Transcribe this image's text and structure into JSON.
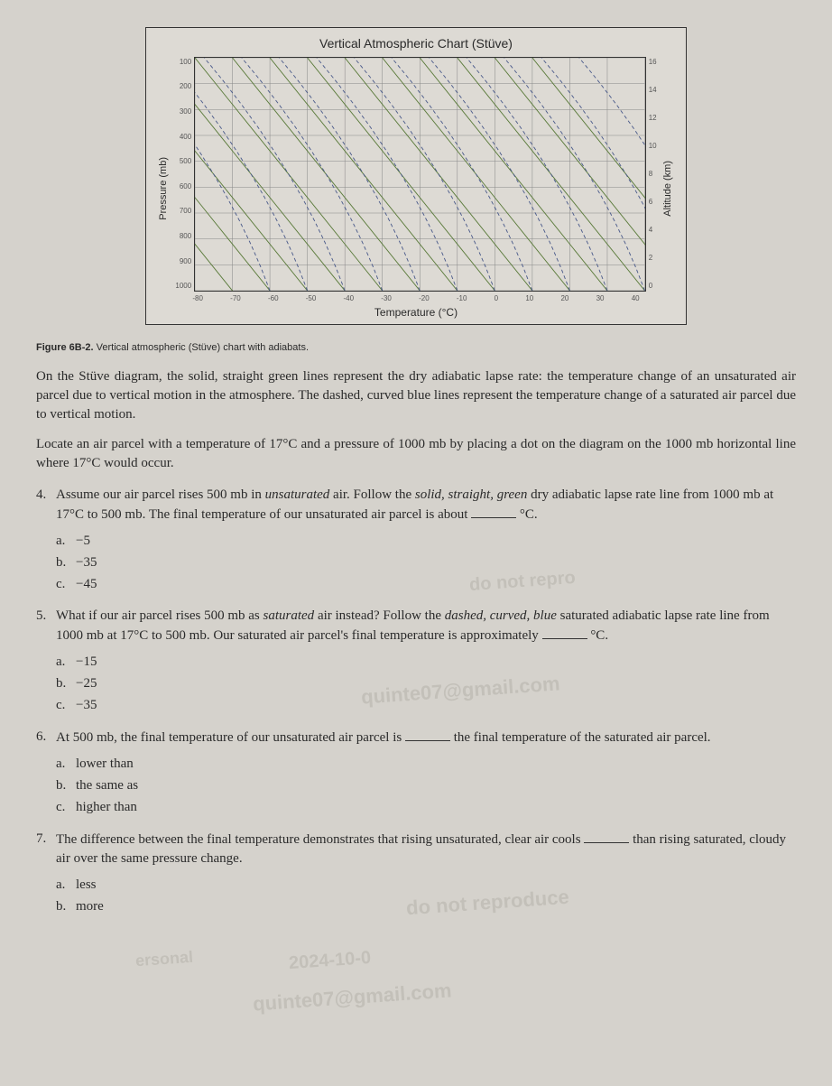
{
  "chart": {
    "title": "Vertical Atmospheric Chart (Stüve)",
    "ylabel_left": "Pressure (mb)",
    "ylabel_right": "Altitude (km)",
    "xlabel": "Temperature (°C)",
    "yticks_left": [
      "100",
      "200",
      "300",
      "400",
      "500",
      "600",
      "700",
      "800",
      "900",
      "1000"
    ],
    "yticks_right": [
      "16",
      "14",
      "12",
      "10",
      "8",
      "6",
      "4",
      "2",
      "0"
    ],
    "xticks": [
      "-80",
      "-70",
      "-60",
      "-50",
      "-40",
      "-30",
      "-20",
      "-10",
      "0",
      "10",
      "20",
      "30",
      "40"
    ],
    "grid_color": "#888",
    "dry_adiabat_color": "#5a7a3a",
    "sat_adiabat_color": "#4a5a8a",
    "bg": "#dddad4"
  },
  "figcaption_bold": "Figure 6B-2.",
  "figcaption_rest": " Vertical atmospheric (Stüve) chart with adiabats.",
  "para1_a": "On the Stüve diagram, the solid, straight green lines represent the dry adiabatic lapse rate: the temperature change of an unsaturated air parcel due to vertical motion in the atmosphere. The dashed, curved blue lines represent the temperature change of a saturated air parcel due to vertical motion.",
  "para2": "Locate an air parcel with a temperature of 17°C and a pressure of 1000 mb by placing a dot on the diagram on the 1000 mb horizontal line where 17°C would occur.",
  "q4": {
    "num": "4.",
    "text_a": "Assume our air parcel rises 500 mb in ",
    "italic1": "unsaturated",
    "text_b": " air. Follow the ",
    "italic2": "solid, straight, green",
    "text_c": " dry adiabatic lapse rate line from 1000 mb at 17°C to 500 mb. The final temperature of our unsaturated air parcel is about ",
    "unit": " °C.",
    "options": [
      {
        "letter": "a.",
        "text": "−5"
      },
      {
        "letter": "b.",
        "text": "−35"
      },
      {
        "letter": "c.",
        "text": "−45"
      }
    ]
  },
  "q5": {
    "num": "5.",
    "text_a": "What if our air parcel rises 500 mb as ",
    "italic1": "saturated",
    "text_b": " air instead? Follow the ",
    "italic2": "dashed, curved, blue",
    "text_c": " saturated adiabatic lapse rate line from 1000 mb at 17°C to 500 mb. Our saturated air parcel's final temperature is approximately ",
    "unit": " °C.",
    "options": [
      {
        "letter": "a.",
        "text": "−15"
      },
      {
        "letter": "b.",
        "text": "−25"
      },
      {
        "letter": "c.",
        "text": "−35"
      }
    ]
  },
  "q6": {
    "num": "6.",
    "text_a": "At 500 mb, the final temperature of our unsaturated air parcel is ",
    "text_b": " the final temperature of the saturated air parcel.",
    "options": [
      {
        "letter": "a.",
        "text": "lower than"
      },
      {
        "letter": "b.",
        "text": "the same as"
      },
      {
        "letter": "c.",
        "text": "higher than"
      }
    ]
  },
  "q7": {
    "num": "7.",
    "text_a": "The difference between the final temperature demonstrates that rising unsaturated, clear air cools ",
    "text_b": " than rising saturated, cloudy air over the same pressure change.",
    "options": [
      {
        "letter": "a.",
        "text": "less"
      },
      {
        "letter": "b.",
        "text": "more"
      }
    ]
  },
  "watermarks": {
    "w1": "do not repro",
    "w2": "quinte07@gmail.com",
    "w3": "do not reproduce",
    "w4": "2024-10-0",
    "w5": "quinte07@gmail.com",
    "w6": "ersonal"
  }
}
